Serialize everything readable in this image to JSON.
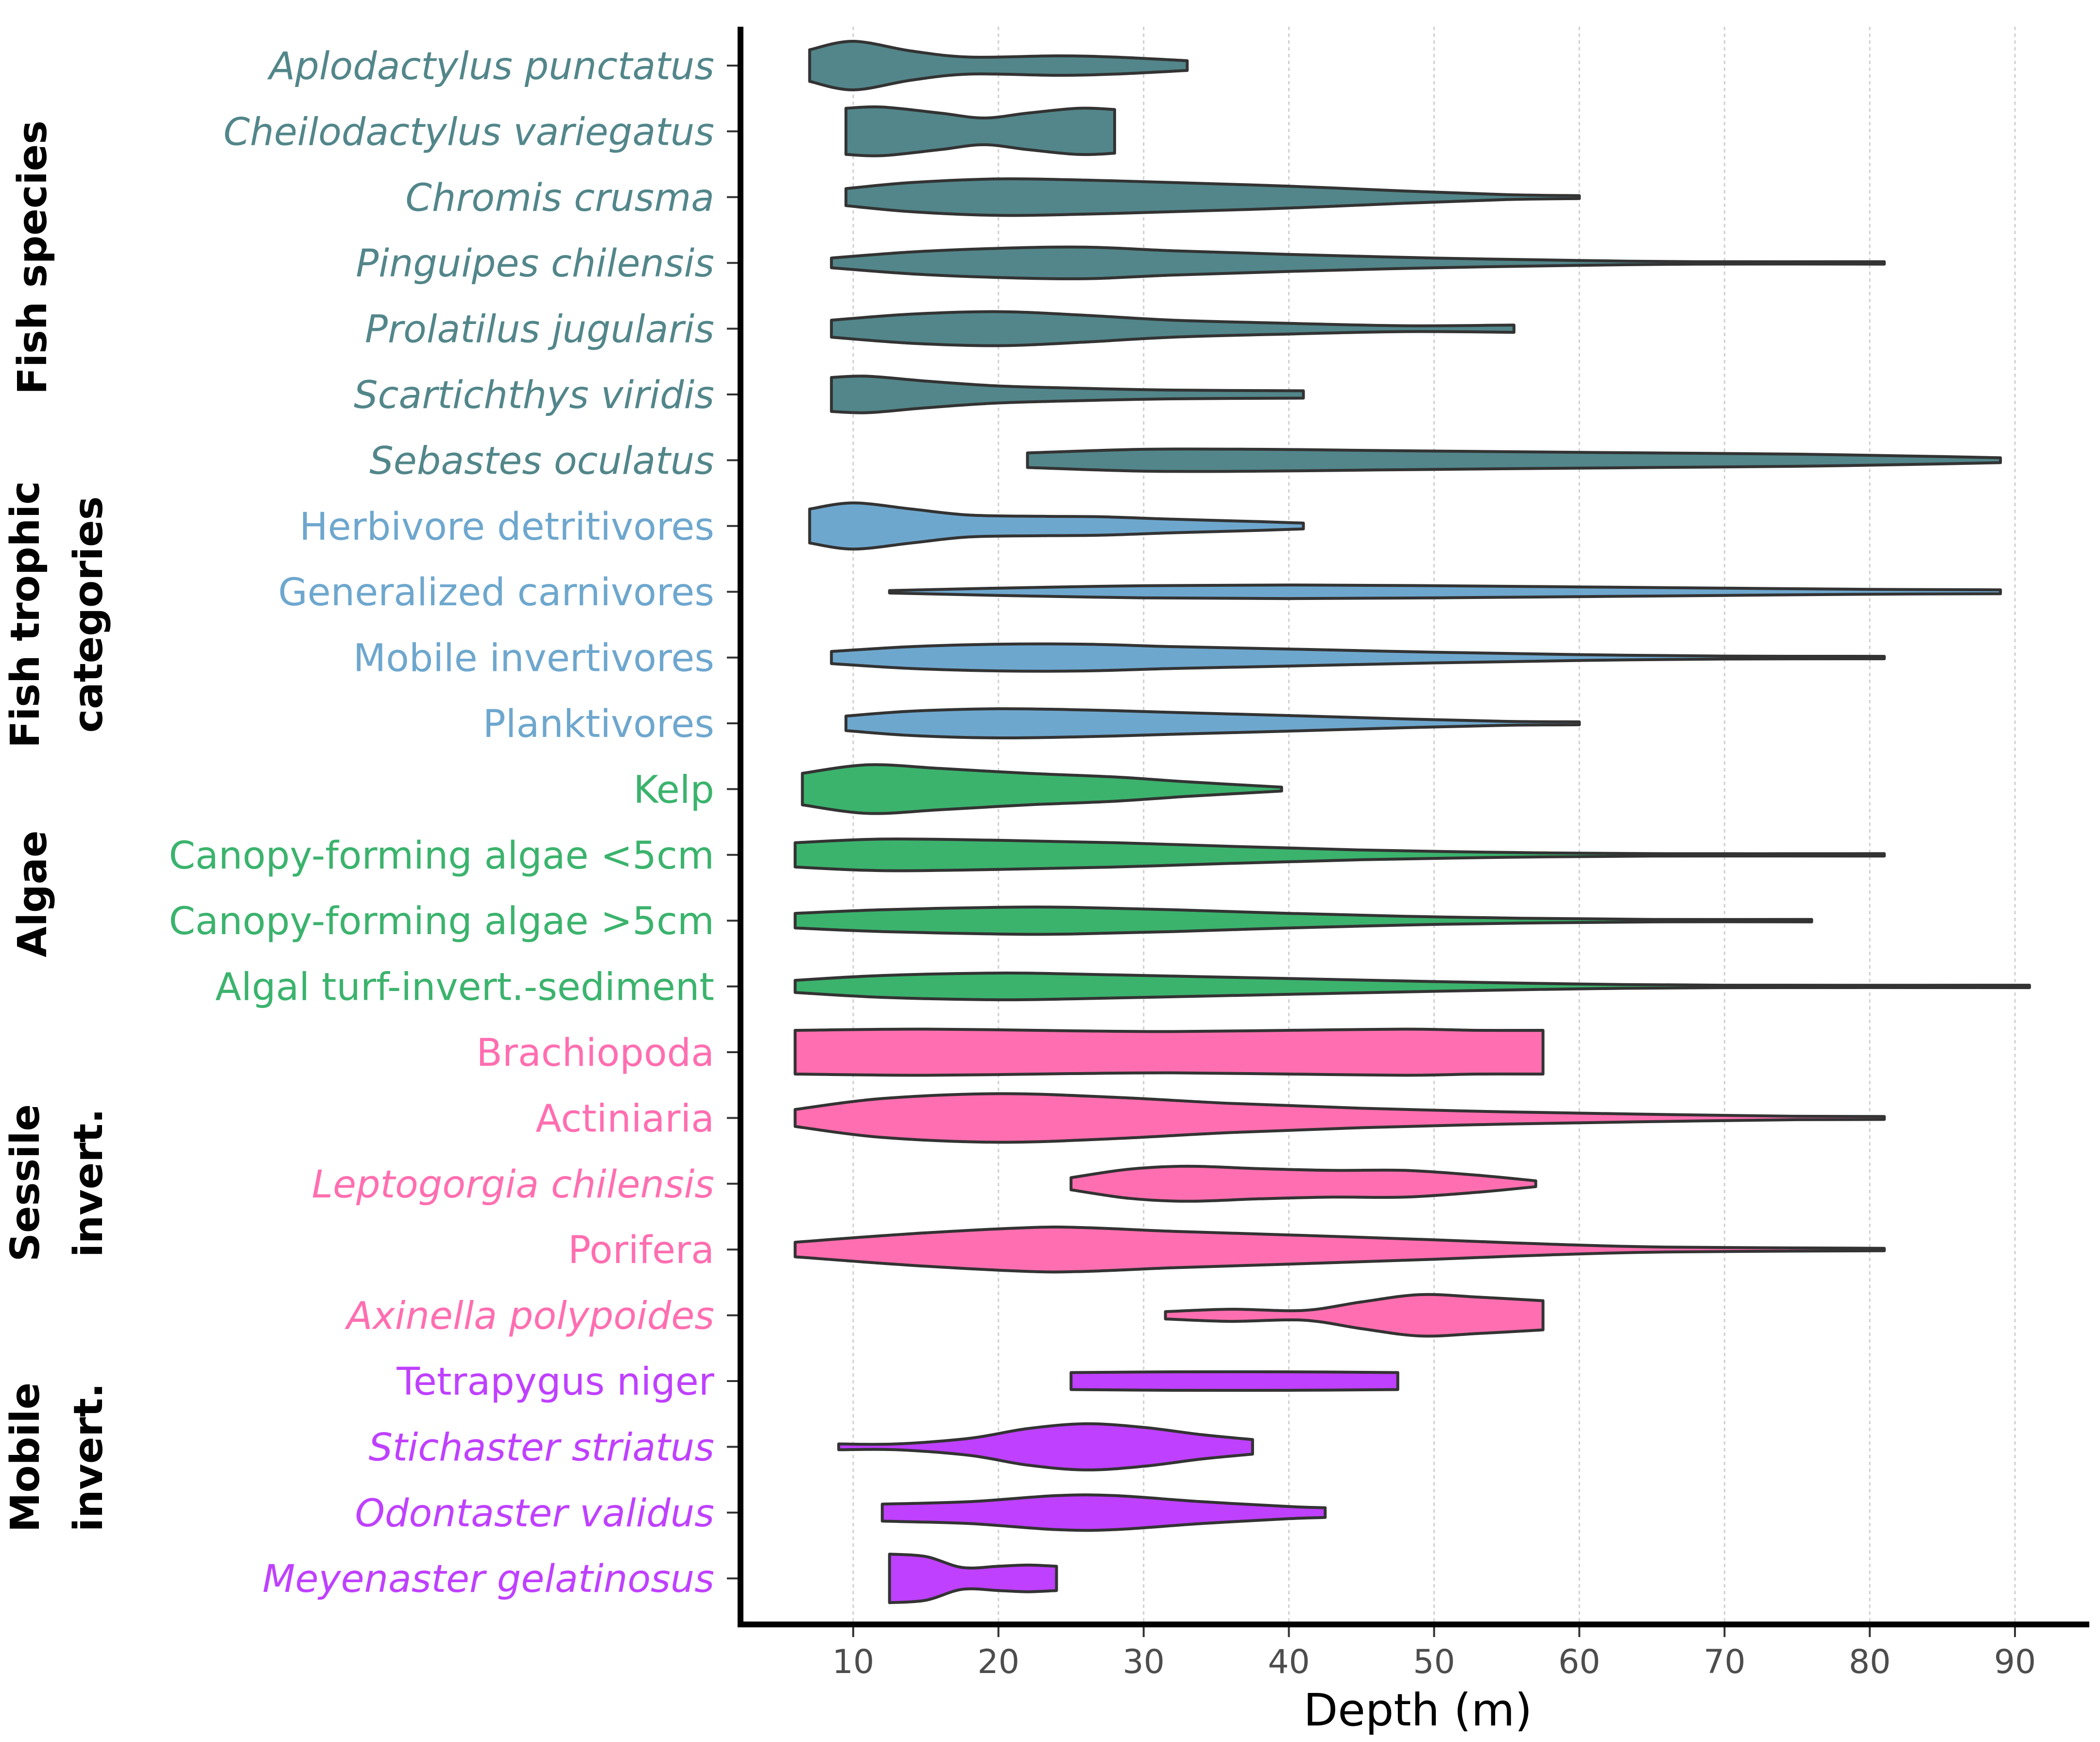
{
  "chart_data": {
    "type": "violin",
    "xlabel": "Depth (m)",
    "xlim": [
      2.5,
      96
    ],
    "xticks": [
      10,
      20,
      30,
      40,
      50,
      60,
      70,
      80,
      90
    ],
    "groups": [
      {
        "name": "Fish species",
        "color": "#52868a"
      },
      {
        "name": "Fish trophic categories",
        "color": "#6ea7ce"
      },
      {
        "name": "Algae",
        "color": "#3bb36d"
      },
      {
        "name": "Sessile invert.",
        "color": "#ff6eb0"
      },
      {
        "name": "Mobile invert.",
        "color": "#bf40ff"
      }
    ],
    "categories": [
      {
        "label": "Aplodactylus punctatus",
        "group": 0,
        "italic": true,
        "min": 7,
        "max": 33,
        "shape": [
          [
            7,
            0.65
          ],
          [
            10,
            1
          ],
          [
            14,
            0.6
          ],
          [
            18,
            0.35
          ],
          [
            24,
            0.4
          ],
          [
            28,
            0.35
          ],
          [
            33,
            0.2
          ]
        ]
      },
      {
        "label": "Cheilodactylus variegatus",
        "group": 0,
        "italic": true,
        "min": 9.5,
        "max": 28,
        "shape": [
          [
            9.5,
            0.95
          ],
          [
            12,
            1
          ],
          [
            16,
            0.75
          ],
          [
            19,
            0.55
          ],
          [
            22,
            0.75
          ],
          [
            25.5,
            0.95
          ],
          [
            28,
            0.9
          ]
        ]
      },
      {
        "label": "Chromis crusma",
        "group": 0,
        "italic": true,
        "min": 9.5,
        "max": 60,
        "shape": [
          [
            9.5,
            0.35
          ],
          [
            14,
            0.6
          ],
          [
            20,
            0.75
          ],
          [
            26,
            0.7
          ],
          [
            32,
            0.6
          ],
          [
            40,
            0.45
          ],
          [
            48,
            0.25
          ],
          [
            55,
            0.1
          ],
          [
            60,
            0.06
          ]
        ]
      },
      {
        "label": "Pinguipes chilensis",
        "group": 0,
        "italic": true,
        "min": 8.5,
        "max": 81,
        "shape": [
          [
            8.5,
            0.2
          ],
          [
            14,
            0.45
          ],
          [
            20,
            0.6
          ],
          [
            26,
            0.65
          ],
          [
            32,
            0.5
          ],
          [
            40,
            0.35
          ],
          [
            50,
            0.2
          ],
          [
            60,
            0.1
          ],
          [
            68,
            0.04
          ],
          [
            81,
            0.03
          ]
        ]
      },
      {
        "label": "Prolatilus jugularis",
        "group": 0,
        "italic": true,
        "min": 8.5,
        "max": 55.5,
        "shape": [
          [
            8.5,
            0.35
          ],
          [
            14,
            0.6
          ],
          [
            20,
            0.7
          ],
          [
            26,
            0.55
          ],
          [
            32,
            0.35
          ],
          [
            40,
            0.22
          ],
          [
            48,
            0.12
          ],
          [
            55.5,
            0.15
          ]
        ]
      },
      {
        "label": "Scartichthys viridis",
        "group": 0,
        "italic": true,
        "min": 8.5,
        "max": 41,
        "shape": [
          [
            8.5,
            0.7
          ],
          [
            11,
            0.75
          ],
          [
            15,
            0.55
          ],
          [
            20,
            0.35
          ],
          [
            26,
            0.25
          ],
          [
            32,
            0.18
          ],
          [
            41,
            0.15
          ]
        ]
      },
      {
        "label": "Sebastes oculatus",
        "group": 0,
        "italic": true,
        "min": 22,
        "max": 89,
        "shape": [
          [
            22,
            0.3
          ],
          [
            30,
            0.45
          ],
          [
            38,
            0.45
          ],
          [
            46,
            0.4
          ],
          [
            55,
            0.35
          ],
          [
            65,
            0.3
          ],
          [
            75,
            0.25
          ],
          [
            85,
            0.15
          ],
          [
            89,
            0.1
          ]
        ]
      },
      {
        "label": "Herbivore detritivores",
        "group": 1,
        "italic": false,
        "min": 7,
        "max": 41,
        "shape": [
          [
            7,
            0.7
          ],
          [
            10,
            0.95
          ],
          [
            14,
            0.7
          ],
          [
            18,
            0.45
          ],
          [
            23,
            0.4
          ],
          [
            27,
            0.38
          ],
          [
            32,
            0.28
          ],
          [
            38,
            0.18
          ],
          [
            41,
            0.12
          ]
        ]
      },
      {
        "label": "Generalized  carnivores",
        "group": 1,
        "italic": false,
        "min": 12.5,
        "max": 89,
        "shape": [
          [
            12.5,
            0.05
          ],
          [
            20,
            0.15
          ],
          [
            30,
            0.25
          ],
          [
            40,
            0.28
          ],
          [
            50,
            0.25
          ],
          [
            60,
            0.2
          ],
          [
            70,
            0.15
          ],
          [
            80,
            0.1
          ],
          [
            89,
            0.08
          ]
        ]
      },
      {
        "label": "Mobile invertivores",
        "group": 1,
        "italic": false,
        "min": 8.5,
        "max": 81,
        "shape": [
          [
            8.5,
            0.25
          ],
          [
            14,
            0.45
          ],
          [
            20,
            0.55
          ],
          [
            26,
            0.55
          ],
          [
            32,
            0.45
          ],
          [
            40,
            0.35
          ],
          [
            50,
            0.22
          ],
          [
            60,
            0.12
          ],
          [
            70,
            0.06
          ],
          [
            81,
            0.04
          ]
        ]
      },
      {
        "label": "Planktivores",
        "group": 1,
        "italic": false,
        "min": 9.5,
        "max": 60,
        "shape": [
          [
            9.5,
            0.3
          ],
          [
            14,
            0.5
          ],
          [
            20,
            0.6
          ],
          [
            26,
            0.55
          ],
          [
            32,
            0.45
          ],
          [
            40,
            0.32
          ],
          [
            48,
            0.18
          ],
          [
            55,
            0.08
          ],
          [
            60,
            0.06
          ]
        ]
      },
      {
        "label": "Kelp",
        "group": 2,
        "italic": false,
        "min": 6.5,
        "max": 39.5,
        "shape": [
          [
            6.5,
            0.65
          ],
          [
            11,
            1
          ],
          [
            16,
            0.85
          ],
          [
            22,
            0.65
          ],
          [
            28,
            0.5
          ],
          [
            33,
            0.3
          ],
          [
            39.5,
            0.08
          ]
        ]
      },
      {
        "label": "Canopy-forming algae <5cm",
        "group": 2,
        "italic": false,
        "min": 6,
        "max": 81,
        "shape": [
          [
            6,
            0.5
          ],
          [
            12,
            0.65
          ],
          [
            20,
            0.6
          ],
          [
            28,
            0.5
          ],
          [
            36,
            0.35
          ],
          [
            45,
            0.2
          ],
          [
            55,
            0.1
          ],
          [
            65,
            0.05
          ],
          [
            81,
            0.05
          ]
        ]
      },
      {
        "label": "Canopy-forming algae >5cm",
        "group": 2,
        "italic": false,
        "min": 6,
        "max": 76,
        "shape": [
          [
            6,
            0.3
          ],
          [
            12,
            0.45
          ],
          [
            20,
            0.55
          ],
          [
            25,
            0.55
          ],
          [
            32,
            0.45
          ],
          [
            40,
            0.3
          ],
          [
            48,
            0.18
          ],
          [
            56,
            0.1
          ],
          [
            65,
            0.05
          ],
          [
            76,
            0.04
          ]
        ]
      },
      {
        "label": "Algal turf-invert.-sediment",
        "group": 2,
        "italic": false,
        "min": 6,
        "max": 91,
        "shape": [
          [
            6,
            0.25
          ],
          [
            12,
            0.45
          ],
          [
            20,
            0.55
          ],
          [
            26,
            0.5
          ],
          [
            34,
            0.4
          ],
          [
            42,
            0.3
          ],
          [
            50,
            0.2
          ],
          [
            60,
            0.1
          ],
          [
            70,
            0.05
          ],
          [
            91,
            0.03
          ]
        ]
      },
      {
        "label": "Brachiopoda",
        "group": 3,
        "italic": false,
        "min": 6,
        "max": 57.5,
        "shape": [
          [
            6,
            0.9
          ],
          [
            15,
            0.95
          ],
          [
            25,
            0.88
          ],
          [
            32,
            0.85
          ],
          [
            40,
            0.9
          ],
          [
            48,
            0.95
          ],
          [
            53,
            0.9
          ],
          [
            57.5,
            0.9
          ]
        ]
      },
      {
        "label": "Actiniaria",
        "group": 3,
        "italic": false,
        "min": 6,
        "max": 81,
        "shape": [
          [
            6,
            0.35
          ],
          [
            12,
            0.8
          ],
          [
            20,
            1
          ],
          [
            28,
            0.85
          ],
          [
            36,
            0.6
          ],
          [
            45,
            0.4
          ],
          [
            55,
            0.25
          ],
          [
            65,
            0.15
          ],
          [
            75,
            0.07
          ],
          [
            81,
            0.06
          ]
        ]
      },
      {
        "label": "Leptogorgia chilensis",
        "group": 3,
        "italic": true,
        "min": 25,
        "max": 57,
        "shape": [
          [
            25,
            0.25
          ],
          [
            29,
            0.6
          ],
          [
            33,
            0.72
          ],
          [
            38,
            0.62
          ],
          [
            43,
            0.55
          ],
          [
            48,
            0.55
          ],
          [
            53,
            0.35
          ],
          [
            57,
            0.12
          ]
        ]
      },
      {
        "label": "Porifera",
        "group": 3,
        "italic": false,
        "min": 6,
        "max": 81,
        "shape": [
          [
            6,
            0.3
          ],
          [
            14,
            0.65
          ],
          [
            22,
            0.9
          ],
          [
            26,
            0.9
          ],
          [
            32,
            0.75
          ],
          [
            40,
            0.6
          ],
          [
            50,
            0.4
          ],
          [
            58,
            0.22
          ],
          [
            66,
            0.1
          ],
          [
            81,
            0.05
          ]
        ]
      },
      {
        "label": "Axinella polypoides",
        "group": 3,
        "italic": true,
        "min": 31.5,
        "max": 57.5,
        "shape": [
          [
            31.5,
            0.15
          ],
          [
            36,
            0.25
          ],
          [
            41,
            0.2
          ],
          [
            45,
            0.55
          ],
          [
            49,
            0.85
          ],
          [
            53,
            0.75
          ],
          [
            57.5,
            0.6
          ]
        ]
      },
      {
        "label": "Tetrapygus niger",
        "group": 4,
        "italic": false,
        "min": 25,
        "max": 47.5,
        "shape": [
          [
            25,
            0.35
          ],
          [
            32,
            0.38
          ],
          [
            40,
            0.38
          ],
          [
            47.5,
            0.35
          ]
        ]
      },
      {
        "label": "Stichaster striatus",
        "group": 4,
        "italic": true,
        "min": 9,
        "max": 37.5,
        "shape": [
          [
            9,
            0.12
          ],
          [
            13,
            0.12
          ],
          [
            18,
            0.35
          ],
          [
            22,
            0.75
          ],
          [
            26,
            0.95
          ],
          [
            30,
            0.8
          ],
          [
            34,
            0.5
          ],
          [
            37.5,
            0.3
          ]
        ]
      },
      {
        "label": "Odontaster validus",
        "group": 4,
        "italic": true,
        "min": 12,
        "max": 42.5,
        "shape": [
          [
            12,
            0.35
          ],
          [
            18,
            0.45
          ],
          [
            24,
            0.7
          ],
          [
            28,
            0.7
          ],
          [
            34,
            0.45
          ],
          [
            40,
            0.25
          ],
          [
            42.5,
            0.2
          ]
        ]
      },
      {
        "label": "Meyenaster gelatinosus",
        "group": 4,
        "italic": true,
        "min": 12.5,
        "max": 24,
        "shape": [
          [
            12.5,
            1
          ],
          [
            15,
            0.9
          ],
          [
            17.5,
            0.45
          ],
          [
            20,
            0.5
          ],
          [
            22,
            0.55
          ],
          [
            24,
            0.5
          ]
        ]
      }
    ]
  }
}
